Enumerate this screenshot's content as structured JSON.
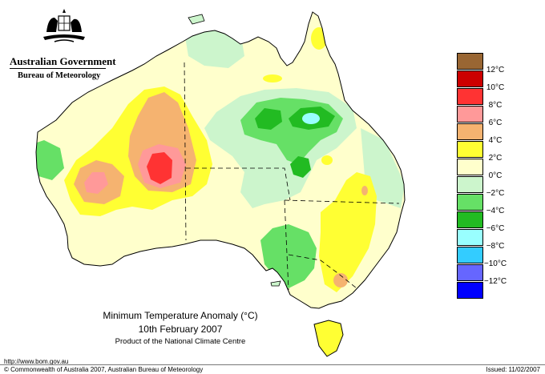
{
  "header": {
    "government": "Australian Government",
    "bureau": "Bureau of Meteorology"
  },
  "legend": {
    "items": [
      {
        "label": "12°C",
        "color": "#996633"
      },
      {
        "label": "10°C",
        "color": "#cc0000"
      },
      {
        "label": "8°C",
        "color": "#ff3333"
      },
      {
        "label": "6°C",
        "color": "#ff9999"
      },
      {
        "label": "4°C",
        "color": "#f5b370"
      },
      {
        "label": "2°C",
        "color": "#ffff33"
      },
      {
        "label": "0°C",
        "color": "#ffffcc"
      },
      {
        "label": "−2°C",
        "color": "#ccf5cc"
      },
      {
        "label": "−4°C",
        "color": "#66e066"
      },
      {
        "label": "−6°C",
        "color": "#22bb22"
      },
      {
        "label": "−8°C",
        "color": "#99ffff"
      },
      {
        "label": "−10°C",
        "color": "#33ccff"
      },
      {
        "label": "−12°C",
        "color": "#6666ff"
      },
      {
        "label": "",
        "color": "#0000ff"
      }
    ]
  },
  "caption": {
    "line1": "Minimum Temperature Anomaly (°C)",
    "line2": "10th February 2007",
    "line3": "Product of the National Climate Centre"
  },
  "footer": {
    "url": "http://www.bom.gov.au",
    "copyright": "© Commonwealth of Australia 2007, Australian Bureau of Meteorology",
    "issued": "Issued: 11/02/2007"
  },
  "map": {
    "title": "Australia minimum temperature anomaly map",
    "colors": {
      "ocean": "#ffffff",
      "outline": "#000000",
      "anom_0": "#ffffcc",
      "anom_m2": "#ccf5cc",
      "anom_m4": "#66e066",
      "anom_m6": "#22bb22",
      "anom_m8": "#99ffff",
      "anom_2": "#ffff33",
      "anom_4": "#f5b370",
      "anom_6": "#ff9999",
      "anom_8": "#ff3333"
    }
  }
}
